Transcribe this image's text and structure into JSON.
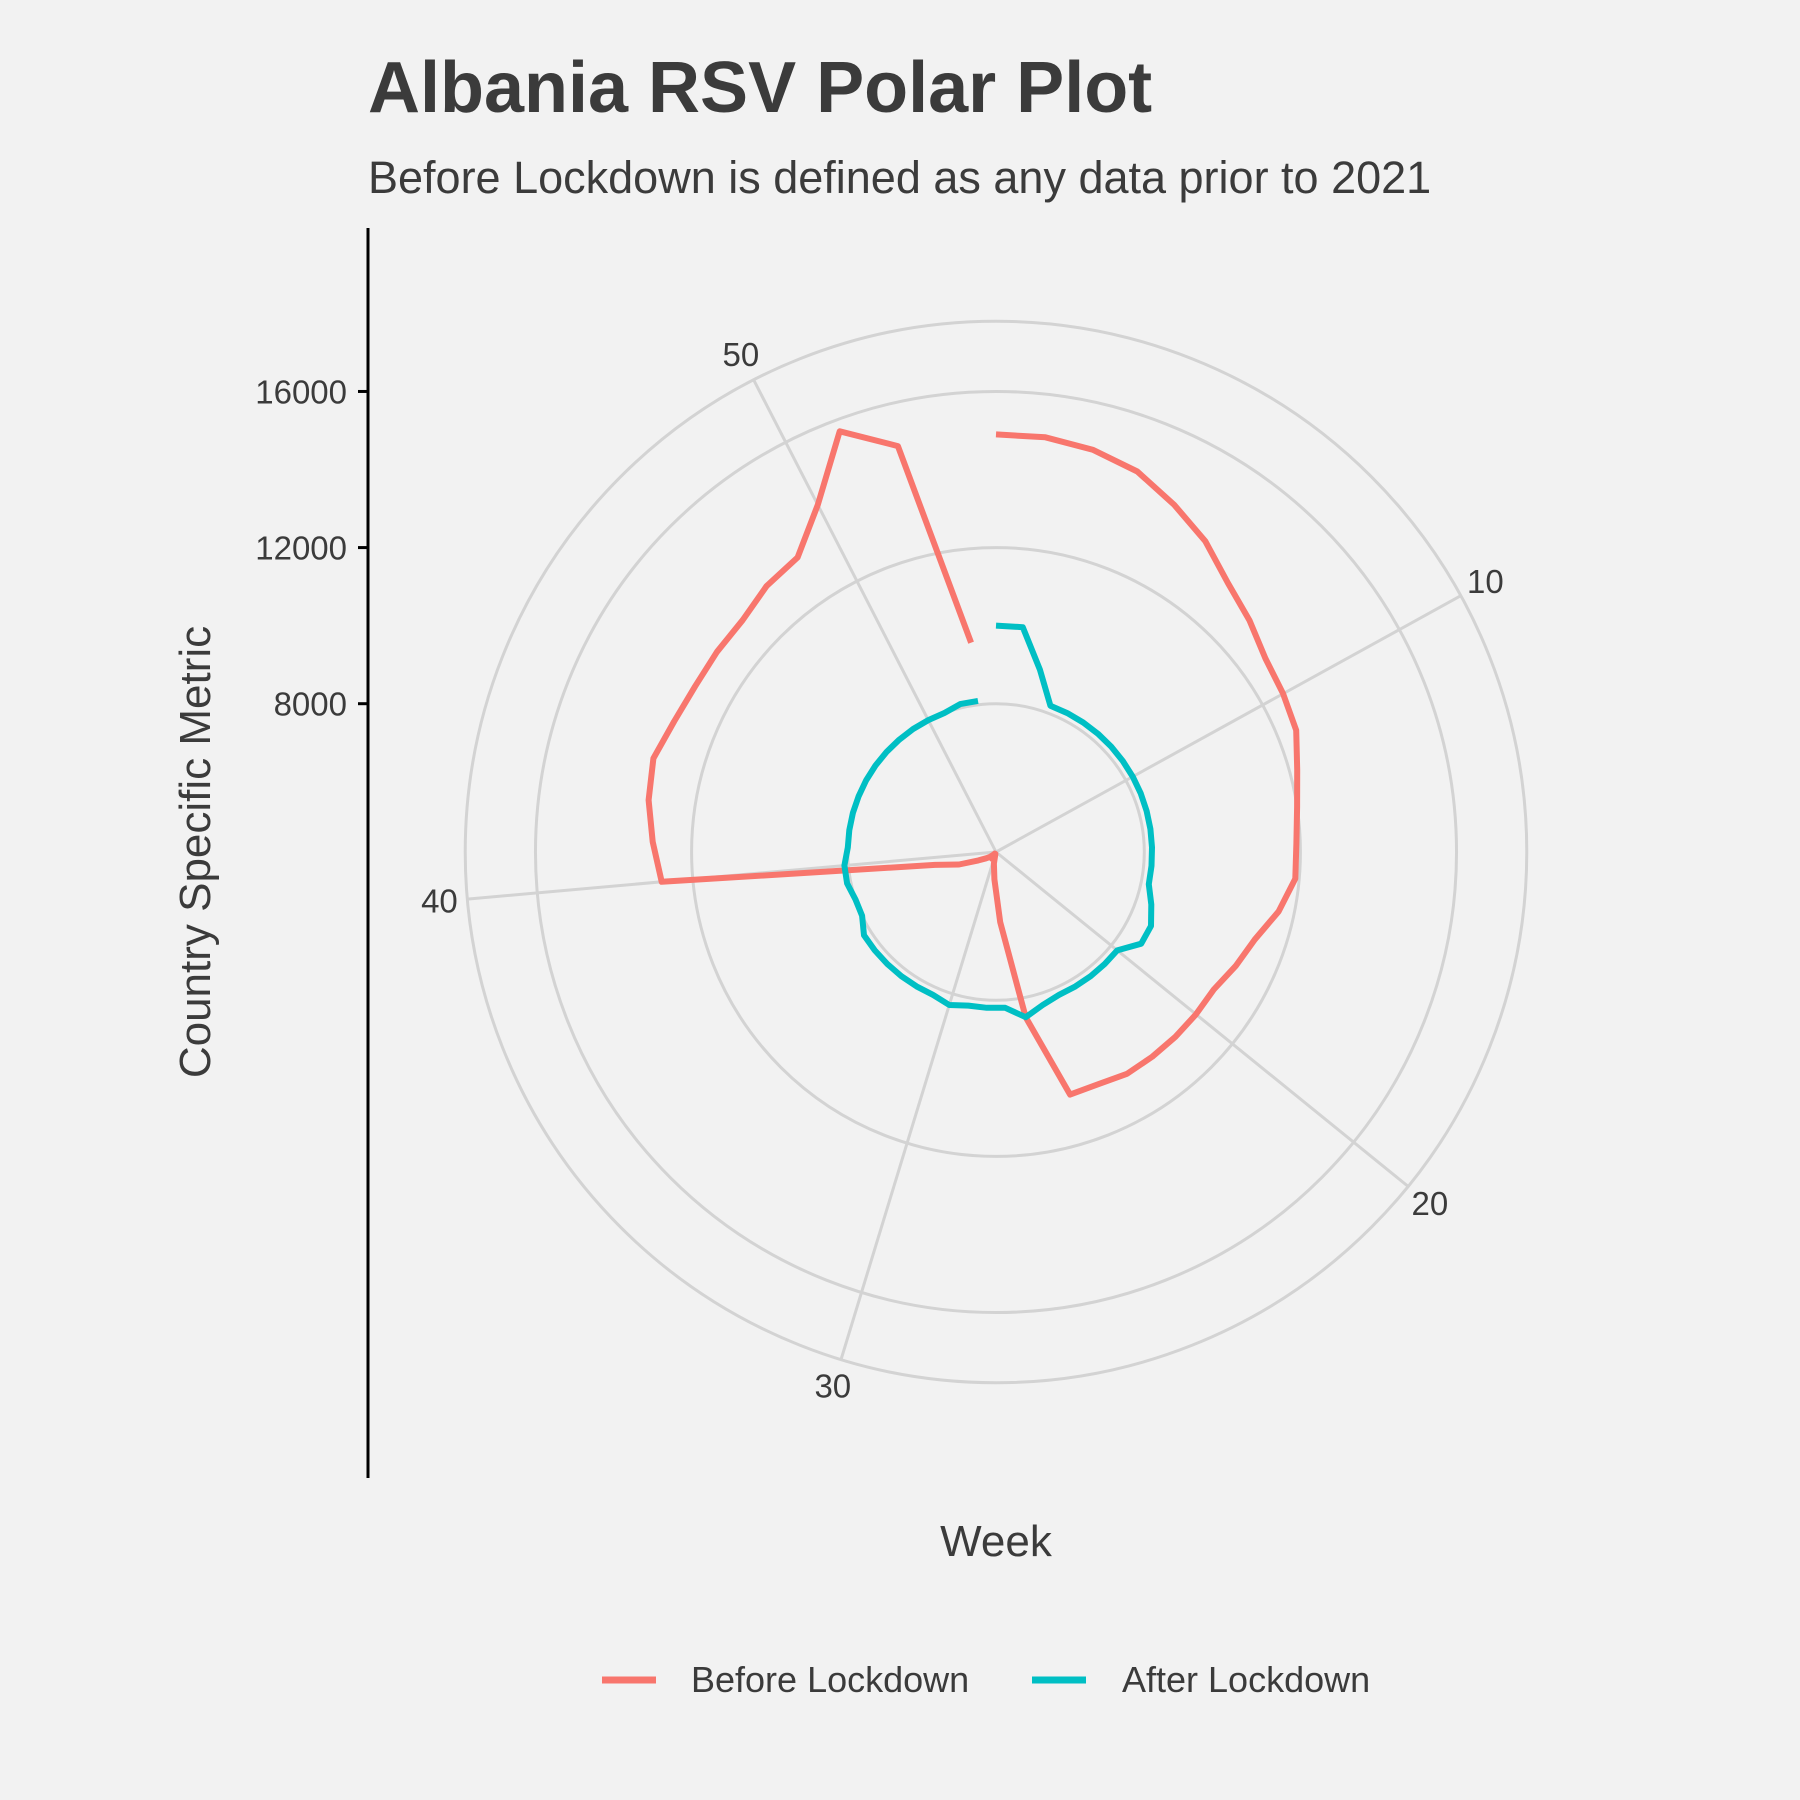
{
  "chart_data": {
    "type": "line",
    "coord": "polar",
    "title": "Albania RSV Polar Plot",
    "subtitle": "Before Lockdown is defined as any data prior to 2021",
    "xlabel": "Week",
    "ylabel": "Country Specific Metric",
    "x_range": [
      1,
      53
    ],
    "theta_ticks": [
      10,
      20,
      30,
      40,
      50
    ],
    "y_ticks": [
      8000,
      12000,
      16000
    ],
    "y_range": [
      4200,
      18600
    ],
    "grid": true,
    "legend_position": "bottom",
    "series": [
      {
        "name": "Before Lockdown",
        "color": "#F8766D",
        "x": [
          1,
          2,
          3,
          4,
          5,
          6,
          7,
          8,
          9,
          10,
          11,
          12,
          13,
          14,
          15,
          16,
          17,
          18,
          19,
          20,
          21,
          22,
          23,
          24,
          25,
          26,
          27,
          28,
          29,
          30,
          31,
          32,
          33,
          34,
          35,
          36,
          37,
          38,
          39,
          40,
          41,
          42,
          43,
          44,
          45,
          46,
          47,
          48,
          49,
          50,
          51,
          52,
          53
        ],
        "y": [
          14900,
          14900,
          14800,
          14600,
          14200,
          13800,
          13300,
          13000,
          12700,
          12600,
          12500,
          12200,
          12000,
          11900,
          11900,
          11600,
          11200,
          11000,
          10800,
          10800,
          10800,
          10800,
          10800,
          10700,
          10700,
          8500,
          6000,
          4900,
          4500,
          4250,
          4300,
          4400,
          4250,
          4300,
          4400,
          4500,
          4700,
          5200,
          5800,
          12800,
          13000,
          13200,
          13300,
          13100,
          13000,
          13000,
          13000,
          13200,
          13300,
          14200,
          15700,
          14900,
          9600
        ]
      },
      {
        "name": "After Lockdown",
        "color": "#00BFC4",
        "x": [
          1,
          2,
          3,
          4,
          5,
          6,
          7,
          8,
          9,
          10,
          11,
          12,
          13,
          14,
          15,
          16,
          17,
          18,
          19,
          20,
          21,
          22,
          23,
          24,
          25,
          26,
          27,
          28,
          29,
          30,
          31,
          32,
          33,
          34,
          35,
          36,
          37,
          38,
          39,
          40,
          41,
          42,
          43,
          44,
          45,
          46,
          47,
          48,
          49,
          50,
          51,
          52,
          53
        ],
        "y": [
          10000,
          10000,
          9000,
          8200,
          8200,
          8200,
          8200,
          8200,
          8200,
          8200,
          8200,
          8200,
          8200,
          8200,
          8200,
          8200,
          8400,
          8600,
          8600,
          8200,
          8200,
          8200,
          8200,
          8200,
          8300,
          8500,
          8200,
          8200,
          8200,
          8300,
          8200,
          8200,
          8200,
          8200,
          8200,
          8200,
          8000,
          8000,
          8100,
          8100,
          8000,
          8000,
          8000,
          8000,
          8000,
          8000,
          8000,
          8000,
          8000,
          8000,
          8000,
          8100,
          8100
        ]
      }
    ]
  }
}
